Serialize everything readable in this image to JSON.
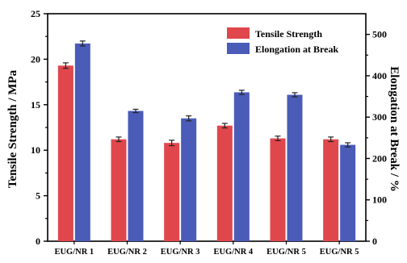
{
  "chart_data": {
    "type": "bar",
    "categories": [
      "EUG/NR 1",
      "EUG/NR 2",
      "EUG/NR 3",
      "EUG/NR 4",
      "EUG/NR 5",
      "EUG/NR 5"
    ],
    "series": [
      {
        "name": "Tensile Strength",
        "axis": "left",
        "color": "#e0474c",
        "values": [
          19.3,
          11.2,
          10.8,
          12.7,
          11.3,
          11.2
        ],
        "errors": [
          0.3,
          0.25,
          0.3,
          0.25,
          0.25,
          0.25
        ]
      },
      {
        "name": "Elongation at Break",
        "axis": "right",
        "color": "#4a5bb8",
        "values": [
          478,
          315,
          297,
          360,
          354,
          233
        ],
        "errors": [
          6,
          4,
          6,
          5,
          5,
          5
        ]
      }
    ],
    "ylabel": "Tensile Strength / MPa",
    "y2label": "Elongation at Break / %",
    "ylim": [
      0,
      25
    ],
    "y2lim": [
      0,
      550
    ],
    "yticks": [
      0,
      5,
      10,
      15,
      20,
      25
    ],
    "y2ticks": [
      0,
      100,
      200,
      300,
      400,
      500
    ],
    "legend_position": "top-right",
    "grid": false
  }
}
